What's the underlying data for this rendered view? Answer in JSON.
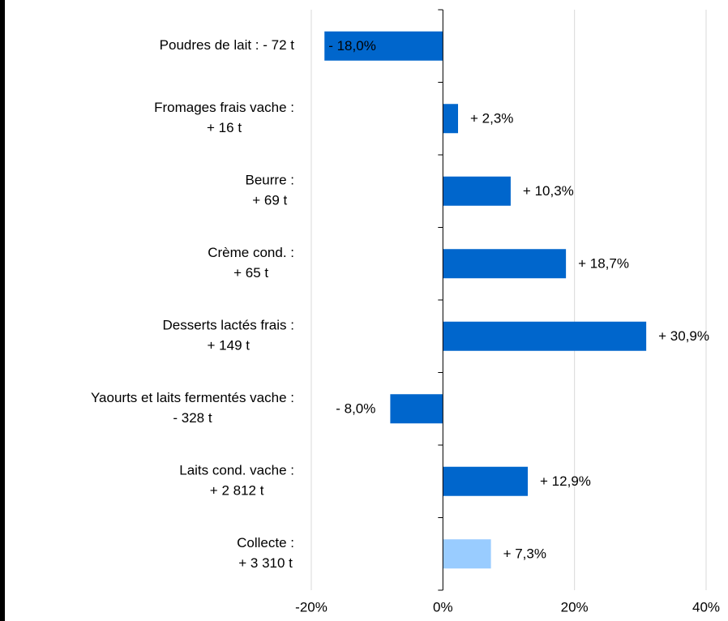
{
  "chart_data": {
    "type": "barh",
    "categories": [
      [
        "Poudres de lait :    - 72 t"
      ],
      [
        "Fromages frais vache :",
        "+ 16 t"
      ],
      [
        "Beurre :",
        "+ 69 t"
      ],
      [
        "Crème cond. :",
        "+ 65 t"
      ],
      [
        "Desserts lactés frais :",
        "+ 149 t"
      ],
      [
        "Yaourts et laits fermentés vache :",
        "- 328 t"
      ],
      [
        "Laits cond. vache :",
        "+ 2 812 t"
      ],
      [
        "Collecte :",
        "+ 3 310 t"
      ]
    ],
    "values": [
      -18.0,
      2.3,
      10.3,
      18.7,
      30.9,
      -8.0,
      12.9,
      7.3
    ],
    "value_labels": [
      "- 18,0%",
      "+ 2,3%",
      "+ 10,3%",
      "+ 18,7%",
      "+ 30,9%",
      "- 8,0%",
      "+ 12,9%",
      "+ 7,3%"
    ],
    "colors": [
      "#0066cc",
      "#0066cc",
      "#0066cc",
      "#0066cc",
      "#0066cc",
      "#0066cc",
      "#0066cc",
      "#99ccff"
    ],
    "xlim": [
      -20,
      40
    ],
    "xticks": [
      {
        "value": -20,
        "label": "-20%"
      },
      {
        "value": 0,
        "label": "0%"
      },
      {
        "value": 20,
        "label": "20%"
      },
      {
        "value": 40,
        "label": "40%"
      }
    ],
    "grid": true
  }
}
